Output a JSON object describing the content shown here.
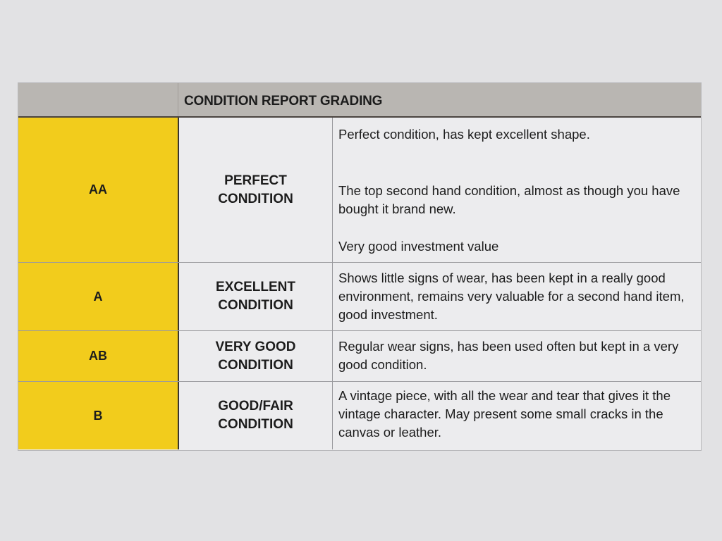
{
  "table": {
    "title": "CONDITION REPORT GRADING",
    "colors": {
      "header": "#b9b6b2",
      "grade_column": "#f2cc1c"
    },
    "rows": [
      {
        "grade": "AA",
        "condition": "PERFECT CONDITION",
        "description": [
          "Perfect condition, has kept excellent shape.",
          "The top second hand condition, almost as though you have bought it brand new.",
          "Very good investment value"
        ]
      },
      {
        "grade": "A",
        "condition": "EXCELLENT CONDITION",
        "description": [
          "Shows little signs of wear, has been kept in a really good environment, remains very valuable for a second hand item, good investment."
        ]
      },
      {
        "grade": "AB",
        "condition": "VERY GOOD CONDITION",
        "description": [
          "Regular wear signs, has been used often but kept in a very good condition."
        ]
      },
      {
        "grade": "B",
        "condition": "GOOD/FAIR CONDITION",
        "description": [
          "A vintage piece, with all the wear and tear that gives it the vintage character. May present some small cracks in the canvas or leather."
        ]
      }
    ]
  }
}
